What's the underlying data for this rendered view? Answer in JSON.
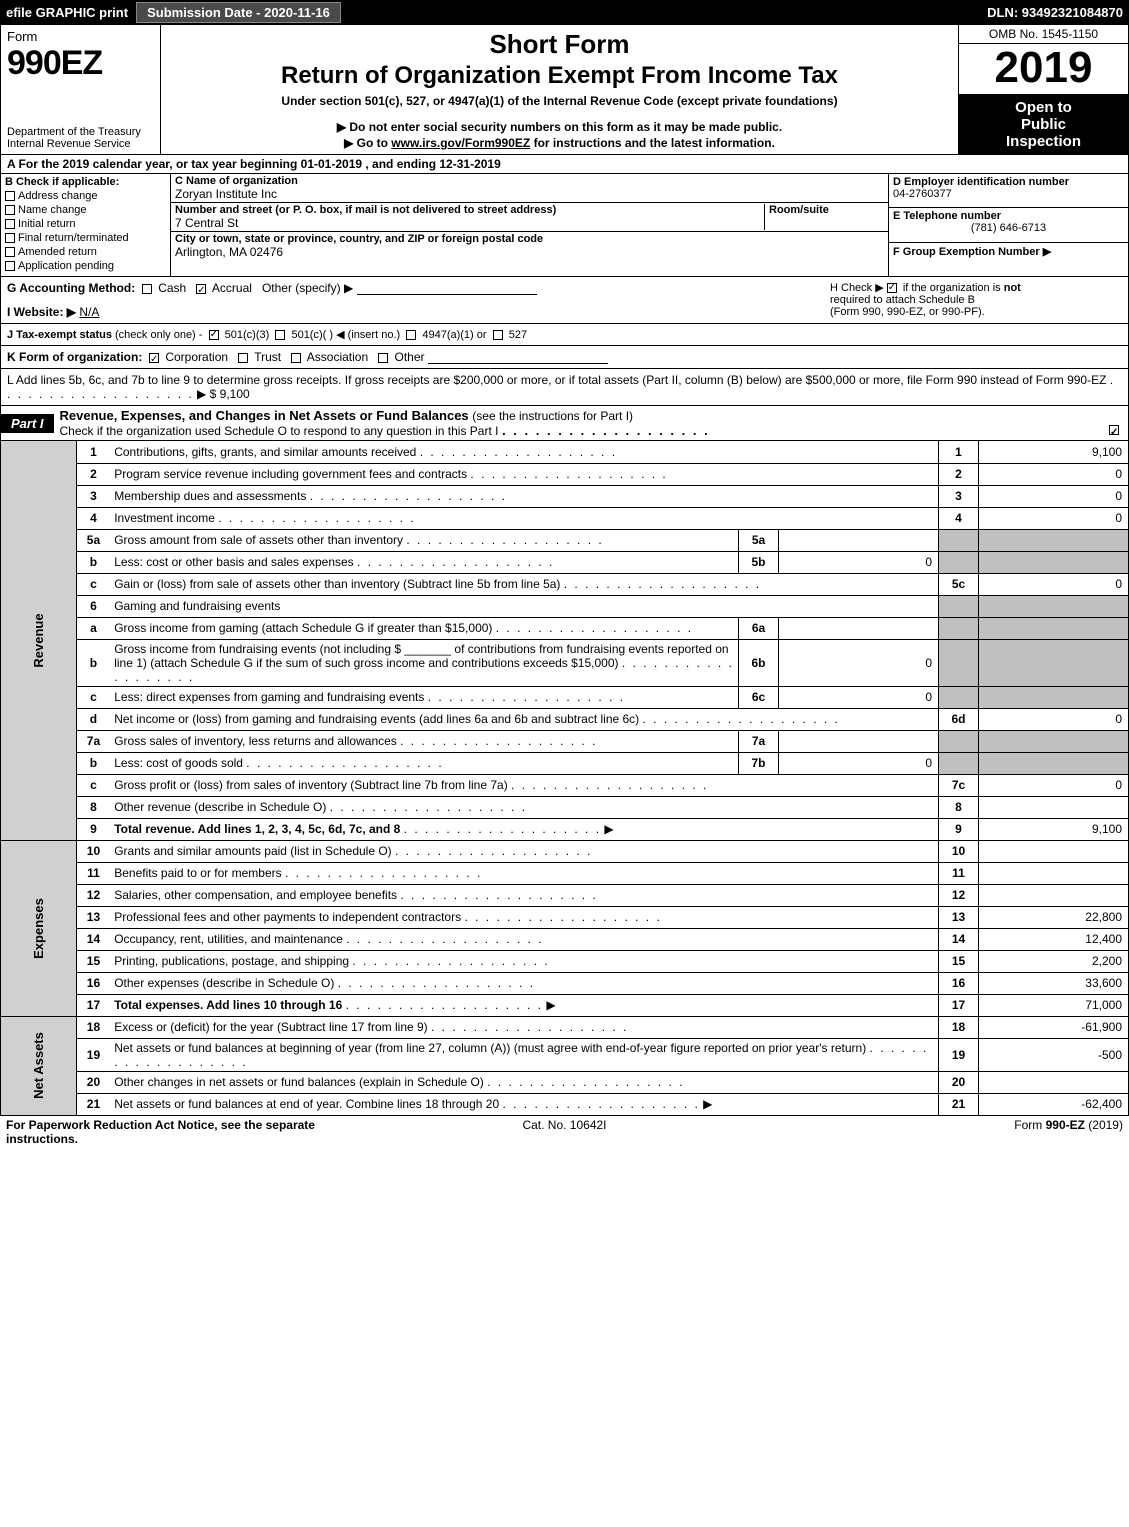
{
  "top_bar": {
    "efile": "efile GRAPHIC print",
    "submission": "Submission Date - 2020-11-16",
    "dln": "DLN: 93492321084870"
  },
  "header": {
    "form_word": "Form",
    "form_number": "990EZ",
    "dept1": "Department of the Treasury",
    "dept2": "Internal Revenue Service",
    "title_short": "Short Form",
    "title_main": "Return of Organization Exempt From Income Tax",
    "subtitle": "Under section 501(c), 527, or 4947(a)(1) of the Internal Revenue Code (except private foundations)",
    "note1": "▶ Do not enter social security numbers on this form as it may be made public.",
    "note2_pre": "▶ Go to ",
    "note2_link": "www.irs.gov/Form990EZ",
    "note2_post": " for instructions and the latest information.",
    "omb": "OMB No. 1545-1150",
    "year": "2019",
    "inspect1": "Open to",
    "inspect2": "Public",
    "inspect3": "Inspection"
  },
  "period": "A  For the 2019 calendar year, or tax year beginning 01-01-2019 , and ending 12-31-2019",
  "boxB": {
    "label": "B  Check if applicable:",
    "items": [
      "Address change",
      "Name change",
      "Initial return",
      "Final return/terminated",
      "Amended return",
      "Application pending"
    ]
  },
  "boxC": {
    "name_label": "C Name of organization",
    "name_val": "Zoryan Institute Inc",
    "addr_label": "Number and street (or P. O. box, if mail is not delivered to street address)",
    "addr_val": "7 Central St",
    "room_label": "Room/suite",
    "city_label": "City or town, state or province, country, and ZIP or foreign postal code",
    "city_val": "Arlington, MA  02476"
  },
  "boxD": {
    "label": "D Employer identification number",
    "val": "04-2760377"
  },
  "boxE": {
    "label": "E Telephone number",
    "val": "(781) 646-6713"
  },
  "boxF": {
    "label": "F Group Exemption Number  ▶"
  },
  "lineG": {
    "label": "G Accounting Method:",
    "cash": "Cash",
    "accrual": "Accrual",
    "other": "Other (specify) ▶"
  },
  "lineH": {
    "text1": "H  Check ▶ ",
    "text2": " if the organization is ",
    "not": "not",
    "text3": "required to attach Schedule B",
    "text4": "(Form 990, 990-EZ, or 990-PF)."
  },
  "lineI": {
    "label": "I Website: ▶",
    "val": "N/A"
  },
  "lineJ": {
    "label": "J Tax-exempt status",
    "sub": "(check only one) -",
    "o1": "501(c)(3)",
    "o2": "501(c)(  ) ◀ (insert no.)",
    "o3": "4947(a)(1) or",
    "o4": "527"
  },
  "lineK": {
    "label": "K Form of organization:",
    "o1": "Corporation",
    "o2": "Trust",
    "o3": "Association",
    "o4": "Other"
  },
  "lineL": {
    "text": "L Add lines 5b, 6c, and 7b to line 9 to determine gross receipts. If gross receipts are $200,000 or more, or if total assets (Part II, column (B) below) are $500,000 or more, file Form 990 instead of Form 990-EZ",
    "arrow": "▶ $",
    "val": "9,100"
  },
  "part1": {
    "label": "Part I",
    "title": "Revenue, Expenses, and Changes in Net Assets or Fund Balances",
    "sub": "(see the instructions for Part I)",
    "check_line": "Check if the organization used Schedule O to respond to any question in this Part I"
  },
  "side_labels": {
    "revenue": "Revenue",
    "expenses": "Expenses",
    "netassets": "Net Assets"
  },
  "rows": [
    {
      "n": "1",
      "d": "Contributions, gifts, grants, and similar amounts received",
      "c": "1",
      "v": "9,100"
    },
    {
      "n": "2",
      "d": "Program service revenue including government fees and contracts",
      "c": "2",
      "v": "0"
    },
    {
      "n": "3",
      "d": "Membership dues and assessments",
      "c": "3",
      "v": "0"
    },
    {
      "n": "4",
      "d": "Investment income",
      "c": "4",
      "v": "0"
    },
    {
      "n": "5a",
      "d": "Gross amount from sale of assets other than inventory",
      "sb": "5a",
      "sv": ""
    },
    {
      "n": "b",
      "d": "Less: cost or other basis and sales expenses",
      "sb": "5b",
      "sv": "0"
    },
    {
      "n": "c",
      "d": "Gain or (loss) from sale of assets other than inventory (Subtract line 5b from line 5a)",
      "c": "5c",
      "v": "0"
    },
    {
      "n": "6",
      "d": "Gaming and fundraising events"
    },
    {
      "n": "a",
      "d": "Gross income from gaming (attach Schedule G if greater than $15,000)",
      "sb": "6a",
      "sv": ""
    },
    {
      "n": "b",
      "d": "Gross income from fundraising events (not including $ _______ of contributions from fundraising events reported on line 1) (attach Schedule G if the sum of such gross income and contributions exceeds $15,000)",
      "sb": "6b",
      "sv": "0"
    },
    {
      "n": "c",
      "d": "Less: direct expenses from gaming and fundraising events",
      "sb": "6c",
      "sv": "0"
    },
    {
      "n": "d",
      "d": "Net income or (loss) from gaming and fundraising events (add lines 6a and 6b and subtract line 6c)",
      "c": "6d",
      "v": "0"
    },
    {
      "n": "7a",
      "d": "Gross sales of inventory, less returns and allowances",
      "sb": "7a",
      "sv": ""
    },
    {
      "n": "b",
      "d": "Less: cost of goods sold",
      "sb": "7b",
      "sv": "0"
    },
    {
      "n": "c",
      "d": "Gross profit or (loss) from sales of inventory (Subtract line 7b from line 7a)",
      "c": "7c",
      "v": "0"
    },
    {
      "n": "8",
      "d": "Other revenue (describe in Schedule O)",
      "c": "8",
      "v": ""
    },
    {
      "n": "9",
      "d": "Total revenue. Add lines 1, 2, 3, 4, 5c, 6d, 7c, and 8",
      "c": "9",
      "v": "9,100",
      "bold": true,
      "arrow": true
    }
  ],
  "exp_rows": [
    {
      "n": "10",
      "d": "Grants and similar amounts paid (list in Schedule O)",
      "c": "10",
      "v": ""
    },
    {
      "n": "11",
      "d": "Benefits paid to or for members",
      "c": "11",
      "v": ""
    },
    {
      "n": "12",
      "d": "Salaries, other compensation, and employee benefits",
      "c": "12",
      "v": ""
    },
    {
      "n": "13",
      "d": "Professional fees and other payments to independent contractors",
      "c": "13",
      "v": "22,800"
    },
    {
      "n": "14",
      "d": "Occupancy, rent, utilities, and maintenance",
      "c": "14",
      "v": "12,400"
    },
    {
      "n": "15",
      "d": "Printing, publications, postage, and shipping",
      "c": "15",
      "v": "2,200"
    },
    {
      "n": "16",
      "d": "Other expenses (describe in Schedule O)",
      "c": "16",
      "v": "33,600"
    },
    {
      "n": "17",
      "d": "Total expenses. Add lines 10 through 16",
      "c": "17",
      "v": "71,000",
      "bold": true,
      "arrow": true
    }
  ],
  "net_rows": [
    {
      "n": "18",
      "d": "Excess or (deficit) for the year (Subtract line 17 from line 9)",
      "c": "18",
      "v": "-61,900"
    },
    {
      "n": "19",
      "d": "Net assets or fund balances at beginning of year (from line 27, column (A)) (must agree with end-of-year figure reported on prior year's return)",
      "c": "19",
      "v": "-500"
    },
    {
      "n": "20",
      "d": "Other changes in net assets or fund balances (explain in Schedule O)",
      "c": "20",
      "v": ""
    },
    {
      "n": "21",
      "d": "Net assets or fund balances at end of year. Combine lines 18 through 20",
      "c": "21",
      "v": "-62,400",
      "arrow": true
    }
  ],
  "footer": {
    "left": "For Paperwork Reduction Act Notice, see the separate instructions.",
    "mid": "Cat. No. 10642I",
    "right_pre": "Form ",
    "right_bold": "990-EZ",
    "right_post": " (2019)"
  },
  "colors": {
    "black": "#000000",
    "white": "#ffffff",
    "gray_side": "#d0d0d0",
    "gray_cell": "#c0c0c0",
    "darkgray": "#4a4a4a"
  }
}
